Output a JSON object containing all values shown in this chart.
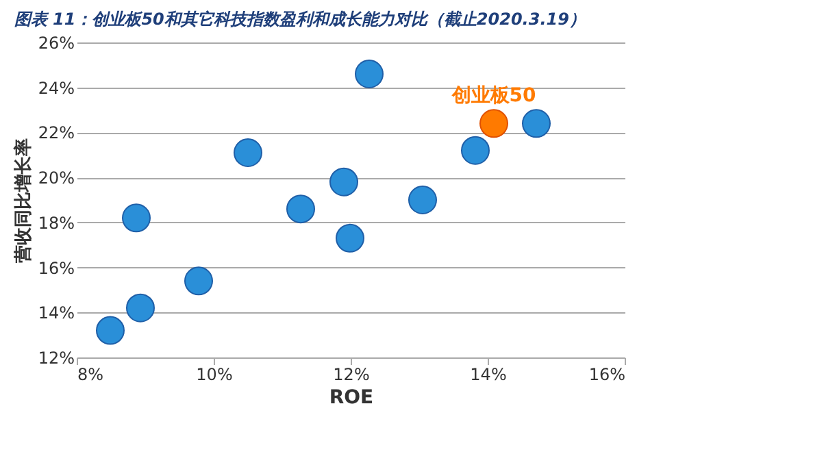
{
  "chart_data": {
    "type": "scatter",
    "title": "图表 11：创业板50和其它科技指数盈利和成长能力对比（截止2020.3.19）",
    "xlabel": "ROE",
    "ylabel": "营收同比增长率",
    "series": [
      {
        "color": "#2a8fd8",
        "x": [
          8.49,
          8.93,
          9.78,
          8.87,
          10.5,
          11.27,
          11.9,
          11.99,
          12.27,
          13.05,
          13.82,
          14.71
        ],
        "values": [
          13.2,
          14.2,
          15.4,
          18.2,
          21.1,
          18.6,
          19.8,
          17.3,
          24.6,
          19.0,
          21.2,
          22.4
        ]
      },
      {
        "name": "创业板50",
        "color": "#ff7a00",
        "x": [
          14.09
        ],
        "values": [
          22.4
        ]
      }
    ],
    "xlim": [
      8,
      16
    ],
    "xticks": [
      {
        "value": 8,
        "label": "8%"
      },
      {
        "value": 10,
        "label": "10%"
      },
      {
        "value": 12,
        "label": "12%"
      },
      {
        "value": 14,
        "label": "14%"
      },
      {
        "value": 16,
        "label": "16%"
      }
    ],
    "ylim": [
      12,
      26
    ],
    "yticks": [
      {
        "value": 12,
        "label": "12%"
      },
      {
        "value": 14,
        "label": "14%"
      },
      {
        "value": 16,
        "label": "16%"
      },
      {
        "value": 18,
        "label": "18%"
      },
      {
        "value": 20,
        "label": "20%"
      },
      {
        "value": 22,
        "label": "22%"
      },
      {
        "value": 24,
        "label": "24%"
      },
      {
        "value": 26,
        "label": "26%"
      }
    ],
    "grid": "y",
    "marker": "circle"
  }
}
